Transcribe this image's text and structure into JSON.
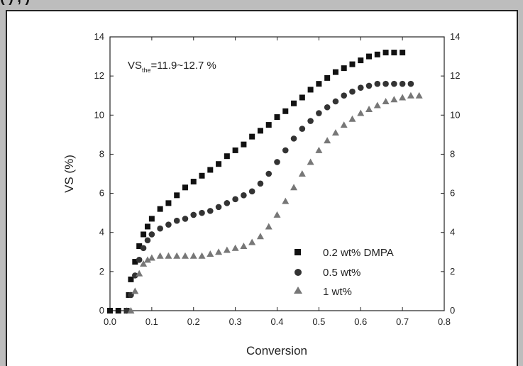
{
  "header_fragment": "(                )                 ,              )",
  "chart_data": {
    "type": "scatter",
    "title": "",
    "xlabel": "Conversion",
    "ylabel": "VS (%)",
    "xlim": [
      0.0,
      0.8
    ],
    "ylim": [
      0,
      14
    ],
    "x_ticks": [
      "0.0",
      "0.1",
      "0.2",
      "0.3",
      "0.4",
      "0.5",
      "0.6",
      "0.7",
      "0.8"
    ],
    "y_ticks": [
      "0",
      "2",
      "4",
      "6",
      "8",
      "10",
      "12",
      "14"
    ],
    "annotation": {
      "main": "VS",
      "subscript": "the",
      "rest": "=11.9~12.7 %"
    },
    "legend_position": "bottom-right",
    "series": [
      {
        "name": "0.2 wt% DMPA",
        "marker": "square",
        "color": "#111111",
        "points": [
          [
            0.0,
            0.0
          ],
          [
            0.02,
            0.0
          ],
          [
            0.04,
            0.0
          ],
          [
            0.045,
            0.8
          ],
          [
            0.05,
            1.6
          ],
          [
            0.06,
            2.5
          ],
          [
            0.07,
            3.3
          ],
          [
            0.08,
            3.9
          ],
          [
            0.09,
            4.3
          ],
          [
            0.1,
            4.7
          ],
          [
            0.12,
            5.2
          ],
          [
            0.14,
            5.5
          ],
          [
            0.16,
            5.9
          ],
          [
            0.18,
            6.3
          ],
          [
            0.2,
            6.6
          ],
          [
            0.22,
            6.9
          ],
          [
            0.24,
            7.2
          ],
          [
            0.26,
            7.5
          ],
          [
            0.28,
            7.9
          ],
          [
            0.3,
            8.2
          ],
          [
            0.32,
            8.5
          ],
          [
            0.34,
            8.9
          ],
          [
            0.36,
            9.2
          ],
          [
            0.38,
            9.5
          ],
          [
            0.4,
            9.9
          ],
          [
            0.42,
            10.2
          ],
          [
            0.44,
            10.6
          ],
          [
            0.46,
            10.9
          ],
          [
            0.48,
            11.3
          ],
          [
            0.5,
            11.6
          ],
          [
            0.52,
            11.9
          ],
          [
            0.54,
            12.2
          ],
          [
            0.56,
            12.4
          ],
          [
            0.58,
            12.6
          ],
          [
            0.6,
            12.8
          ],
          [
            0.62,
            13.0
          ],
          [
            0.64,
            13.1
          ],
          [
            0.66,
            13.2
          ],
          [
            0.68,
            13.2
          ],
          [
            0.7,
            13.2
          ]
        ]
      },
      {
        "name": "0.5 wt%",
        "marker": "circle",
        "color": "#333333",
        "points": [
          [
            0.04,
            0.0
          ],
          [
            0.05,
            0.8
          ],
          [
            0.06,
            1.8
          ],
          [
            0.07,
            2.6
          ],
          [
            0.08,
            3.2
          ],
          [
            0.09,
            3.6
          ],
          [
            0.1,
            3.9
          ],
          [
            0.12,
            4.2
          ],
          [
            0.14,
            4.4
          ],
          [
            0.16,
            4.6
          ],
          [
            0.18,
            4.7
          ],
          [
            0.2,
            4.9
          ],
          [
            0.22,
            5.0
          ],
          [
            0.24,
            5.1
          ],
          [
            0.26,
            5.3
          ],
          [
            0.28,
            5.5
          ],
          [
            0.3,
            5.7
          ],
          [
            0.32,
            5.9
          ],
          [
            0.34,
            6.1
          ],
          [
            0.36,
            6.5
          ],
          [
            0.38,
            7.0
          ],
          [
            0.4,
            7.6
          ],
          [
            0.42,
            8.2
          ],
          [
            0.44,
            8.8
          ],
          [
            0.46,
            9.3
          ],
          [
            0.48,
            9.7
          ],
          [
            0.5,
            10.1
          ],
          [
            0.52,
            10.4
          ],
          [
            0.54,
            10.7
          ],
          [
            0.56,
            11.0
          ],
          [
            0.58,
            11.2
          ],
          [
            0.6,
            11.4
          ],
          [
            0.62,
            11.5
          ],
          [
            0.64,
            11.6
          ],
          [
            0.66,
            11.6
          ],
          [
            0.68,
            11.6
          ],
          [
            0.7,
            11.6
          ],
          [
            0.72,
            11.6
          ]
        ]
      },
      {
        "name": "1 wt%",
        "marker": "triangle",
        "color": "#777777",
        "points": [
          [
            0.05,
            0.0
          ],
          [
            0.06,
            1.0
          ],
          [
            0.07,
            1.9
          ],
          [
            0.08,
            2.4
          ],
          [
            0.09,
            2.6
          ],
          [
            0.1,
            2.7
          ],
          [
            0.12,
            2.8
          ],
          [
            0.14,
            2.8
          ],
          [
            0.16,
            2.8
          ],
          [
            0.18,
            2.8
          ],
          [
            0.2,
            2.8
          ],
          [
            0.22,
            2.8
          ],
          [
            0.24,
            2.9
          ],
          [
            0.26,
            3.0
          ],
          [
            0.28,
            3.1
          ],
          [
            0.3,
            3.2
          ],
          [
            0.32,
            3.3
          ],
          [
            0.34,
            3.5
          ],
          [
            0.36,
            3.8
          ],
          [
            0.38,
            4.3
          ],
          [
            0.4,
            4.9
          ],
          [
            0.42,
            5.6
          ],
          [
            0.44,
            6.3
          ],
          [
            0.46,
            7.0
          ],
          [
            0.48,
            7.6
          ],
          [
            0.5,
            8.2
          ],
          [
            0.52,
            8.7
          ],
          [
            0.54,
            9.1
          ],
          [
            0.56,
            9.5
          ],
          [
            0.58,
            9.8
          ],
          [
            0.6,
            10.1
          ],
          [
            0.62,
            10.3
          ],
          [
            0.64,
            10.5
          ],
          [
            0.66,
            10.7
          ],
          [
            0.68,
            10.8
          ],
          [
            0.7,
            10.9
          ],
          [
            0.72,
            11.0
          ],
          [
            0.74,
            11.0
          ]
        ]
      }
    ]
  }
}
